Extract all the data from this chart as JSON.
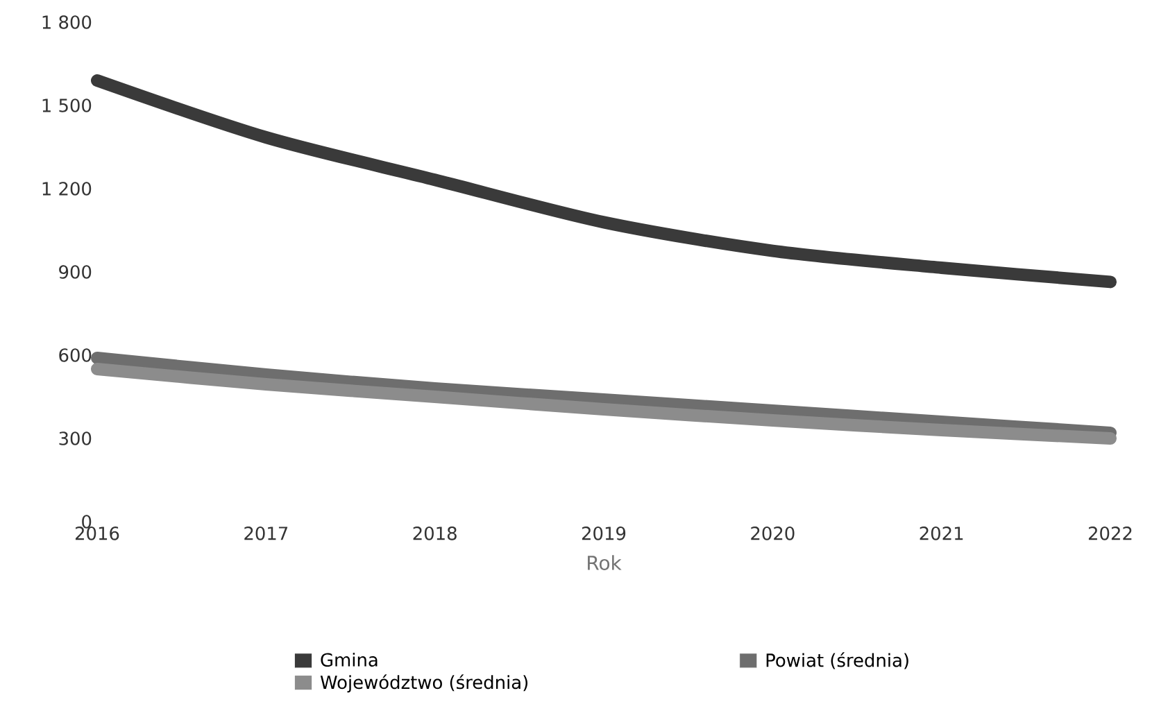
{
  "chart_data": {
    "type": "line",
    "xlabel": "Rok",
    "x": [
      2016,
      2017,
      2018,
      2019,
      2020,
      2021,
      2022
    ],
    "series": [
      {
        "name": "Gmina",
        "color": "#3a3a3a",
        "values": [
          1590,
          1385,
          1232,
          1079,
          976,
          915,
          864
        ]
      },
      {
        "name": "Powiat (średnia)",
        "color": "#6e6e6e",
        "values": [
          590,
          530,
          480,
          440,
          400,
          360,
          320
        ]
      },
      {
        "name": "Województwo (średnia)",
        "color": "#8c8c8c",
        "values": [
          550,
          495,
          450,
          405,
          365,
          330,
          300
        ]
      }
    ],
    "xlim": [
      2016,
      2022
    ],
    "xticks": [
      2016,
      2017,
      2018,
      2019,
      2020,
      2021,
      2022
    ],
    "ylim": [
      0,
      1800
    ],
    "yticks": [
      0,
      300,
      600,
      900,
      {
        "value": 1200,
        "label": "1 200"
      },
      {
        "value": 1500,
        "label": "1 500"
      },
      {
        "value": 1800,
        "label": "1 800"
      }
    ],
    "grid": false,
    "legend": "bottom"
  }
}
